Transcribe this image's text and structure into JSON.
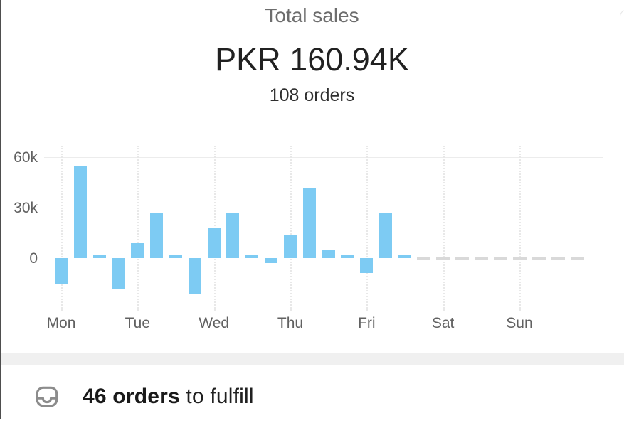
{
  "header": {
    "title": "Total sales",
    "value": "PKR 160.94K",
    "subtitle": "108 orders"
  },
  "chart_data": {
    "type": "bar",
    "title": "Total sales",
    "unit": "PKR (thousands)",
    "categories_days": [
      "Mon",
      "Tue",
      "Wed",
      "Thu",
      "Fri",
      "Sat",
      "Sun"
    ],
    "bars_per_day": 4,
    "values_k": [
      -15,
      55,
      2,
      -18,
      9,
      27,
      2,
      -21,
      18,
      27,
      2,
      -3,
      14,
      42,
      5,
      2,
      -9,
      27,
      2
    ],
    "ytick_labels": [
      "60k",
      "30k",
      "0"
    ],
    "ytick_values_k": [
      60,
      30,
      0
    ],
    "ylim_k": [
      -25,
      65
    ],
    "bar_color": "#7dcbf3",
    "future_days_dashed": [
      "Sat",
      "Sun"
    ],
    "grid": "horizontal lines at 30k and 60k, dotted vertical line at each day tick",
    "legend": "none"
  },
  "fulfill": {
    "emphasis": "46 orders",
    "rest": " to fulfill",
    "icon": "inbox-icon"
  },
  "colors": {
    "accent_bar": "#7dcbf3",
    "axis_label": "#616161",
    "title_gray": "#6d6d6d",
    "value_dark": "#212121",
    "divider_band": "#f0f0f0",
    "icon_gray": "#8c8c8c",
    "future_dash": "#d9d9d9"
  }
}
